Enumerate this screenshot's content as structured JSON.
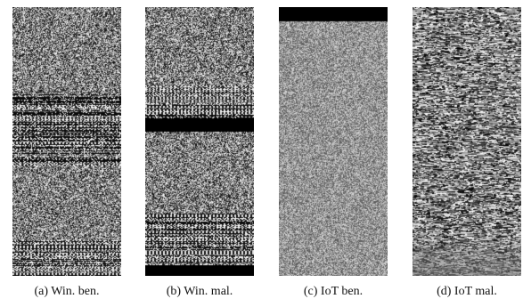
{
  "figure": {
    "panels": [
      {
        "id": "a",
        "caption": "(a)  Win. ben."
      },
      {
        "id": "b",
        "caption": "(b)  Win. mal."
      },
      {
        "id": "c",
        "caption": "(c)  IoT ben."
      },
      {
        "id": "d",
        "caption": "(d)  IoT mal."
      }
    ]
  }
}
